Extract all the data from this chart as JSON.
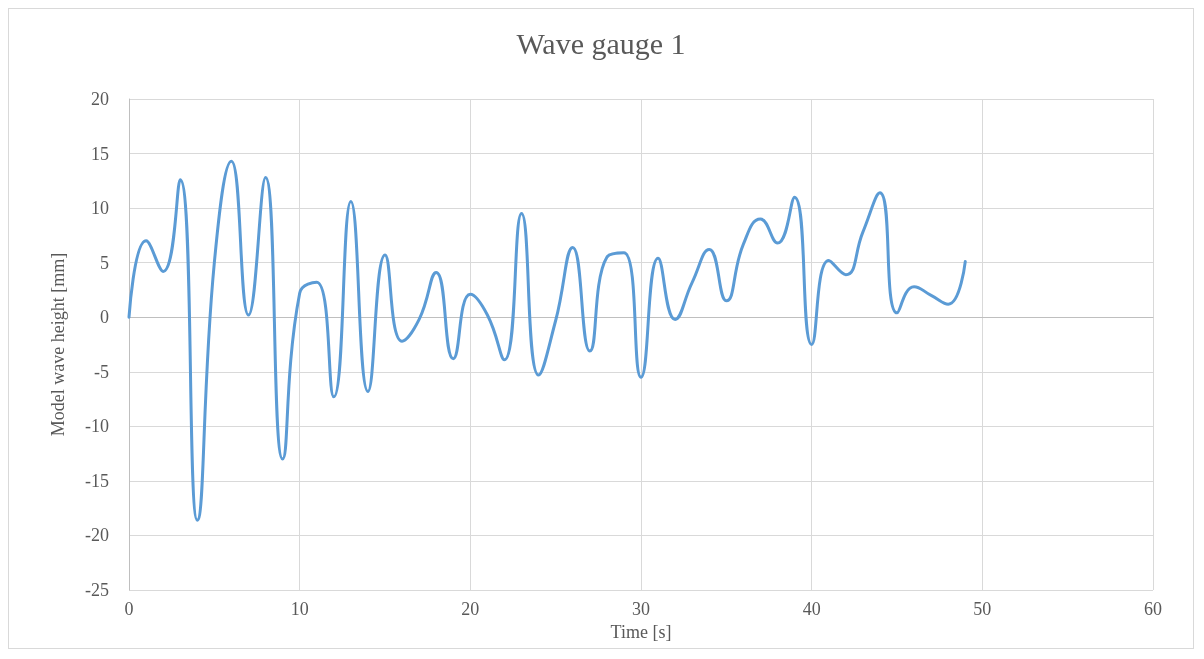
{
  "chart_data": {
    "type": "line",
    "title": "Wave gauge 1",
    "xlabel": "Time [s]",
    "ylabel": "Model wave height [mm]",
    "xlim": [
      0,
      60
    ],
    "xticks": [
      0,
      10,
      20,
      30,
      40,
      50,
      60
    ],
    "ylim": [
      -25,
      20
    ],
    "yticks": [
      -25,
      -20,
      -15,
      -10,
      -5,
      0,
      5,
      10,
      15,
      20
    ],
    "grid": true,
    "marker": "none",
    "line_style": "solid",
    "series": [
      {
        "color": "#5b9bd5",
        "x": [
          0,
          1,
          2,
          3,
          4,
          5,
          6,
          7,
          8,
          9,
          10,
          11,
          12,
          13,
          14,
          15,
          16,
          17,
          18,
          19,
          20,
          21,
          22,
          23,
          24,
          25,
          26,
          27,
          28,
          29,
          30,
          31,
          32,
          33,
          34,
          35,
          36,
          37,
          38,
          39,
          40,
          41,
          42,
          43,
          44,
          45,
          46,
          47,
          48,
          49
        ],
        "values": [
          0,
          7,
          4.2,
          12.6,
          -18.6,
          5,
          14.3,
          0.2,
          12.8,
          -13,
          2.2,
          3.2,
          -7.3,
          10.6,
          -6.8,
          5.7,
          -2.2,
          -0.2,
          4.1,
          -3.8,
          2.1,
          0.2,
          -3.9,
          9.5,
          -5.3,
          -0.3,
          6.4,
          -3.1,
          5.5,
          5.9,
          -5.5,
          5.4,
          -0.2,
          3.2,
          6.2,
          1.5,
          6.7,
          9,
          6.8,
          11,
          -2.5,
          5.2,
          3.9,
          7.8,
          11.4,
          0.4,
          2.8,
          2,
          1.2,
          5.1
        ]
      }
    ]
  }
}
